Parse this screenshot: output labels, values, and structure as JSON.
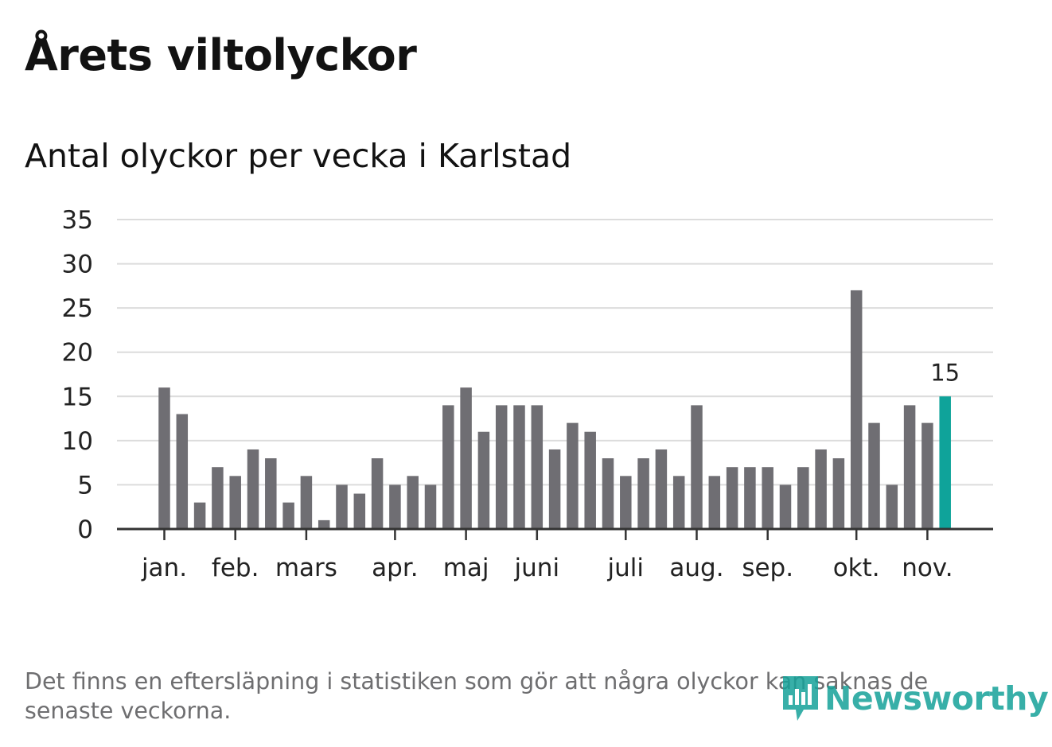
{
  "title": "Årets viltolyckor",
  "subtitle": "Antal olyckor per vecka i Karlstad",
  "footnote": "Det finns en eftersläpning i statistiken som gör att några olyckor kan saknas de senaste veckorna.",
  "logo": {
    "text": "Newsworthy",
    "icon": "newsworthy-bar-icon"
  },
  "colors": {
    "bar": "#6f6e73",
    "highlight": "#0fa39a",
    "grid": "#dcdcdc",
    "axis": "#333333"
  },
  "chart_data": {
    "type": "bar",
    "title": "Antal olyckor per vecka i Karlstad",
    "xlabel": "",
    "ylabel": "",
    "ylim": [
      0,
      35
    ],
    "yticks": [
      0,
      5,
      10,
      15,
      20,
      25,
      30,
      35
    ],
    "grid": true,
    "values": [
      16,
      13,
      3,
      7,
      6,
      9,
      8,
      3,
      6,
      1,
      5,
      4,
      8,
      5,
      6,
      5,
      14,
      16,
      11,
      14,
      14,
      14,
      9,
      12,
      11,
      8,
      6,
      8,
      9,
      6,
      14,
      6,
      7,
      7,
      7,
      5,
      7,
      9,
      8,
      27,
      12,
      5,
      14,
      12,
      15
    ],
    "highlight_index": 44,
    "highlight_label": "15",
    "month_ticks": [
      {
        "label": "jan.",
        "week": 0
      },
      {
        "label": "feb.",
        "week": 4
      },
      {
        "label": "mars",
        "week": 8
      },
      {
        "label": "apr.",
        "week": 13
      },
      {
        "label": "maj",
        "week": 17
      },
      {
        "label": "juni",
        "week": 21
      },
      {
        "label": "juli",
        "week": 26
      },
      {
        "label": "aug.",
        "week": 30
      },
      {
        "label": "sep.",
        "week": 34
      },
      {
        "label": "okt.",
        "week": 39
      },
      {
        "label": "nov.",
        "week": 43
      }
    ]
  }
}
